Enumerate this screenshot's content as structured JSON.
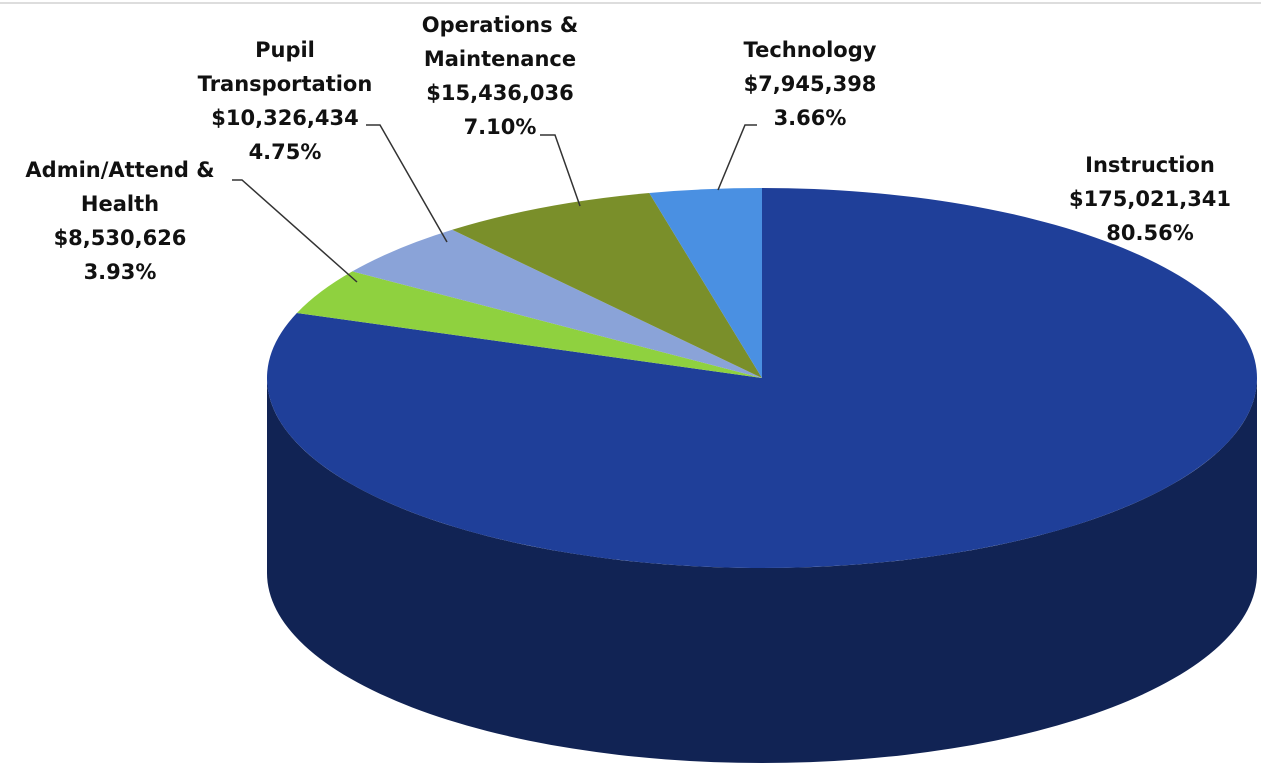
{
  "chart_data": {
    "type": "pie3d",
    "categories": [
      "Instruction",
      "Admin/Attend & Health",
      "Pupil Transportation",
      "Operations & Maintenance",
      "Technology"
    ],
    "values": [
      175021341,
      8530626,
      10326434,
      15436036,
      7945398
    ],
    "value_labels": [
      "$175,021,341",
      "$8,530,626",
      "$10,326,434",
      "$15,436,036",
      "$7,945,398"
    ],
    "percents": [
      80.56,
      3.93,
      4.75,
      7.1,
      3.66
    ],
    "percent_labels": [
      "80.56%",
      "3.93%",
      "4.75%",
      "7.10%",
      "3.66%"
    ],
    "colors": [
      "#1f3f99",
      "#8fd13f",
      "#8aa3d8",
      "#7a8f2a",
      "#4a90e2"
    ]
  }
}
